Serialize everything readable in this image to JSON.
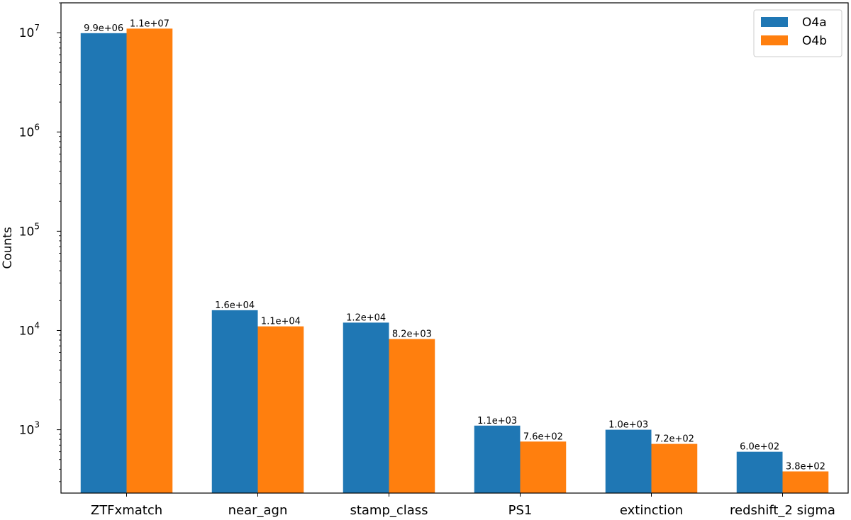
{
  "chart_data": {
    "type": "bar",
    "title": "",
    "xlabel": "",
    "ylabel": "Counts",
    "yscale": "log",
    "ylim": [
      230,
      20000000
    ],
    "yticks": [
      {
        "value": 1000,
        "base": "10",
        "exp": "3"
      },
      {
        "value": 10000,
        "base": "10",
        "exp": "4"
      },
      {
        "value": 100000,
        "base": "10",
        "exp": "5"
      },
      {
        "value": 1000000,
        "base": "10",
        "exp": "6"
      },
      {
        "value": 10000000,
        "base": "10",
        "exp": "7"
      }
    ],
    "categories": [
      "ZTFxmatch",
      "near_agn",
      "stamp_class",
      "PS1",
      "extinction",
      "redshift_2 sigma"
    ],
    "series": [
      {
        "name": "O4a",
        "color": "#1f77b4",
        "values": [
          9900000,
          16000,
          12000,
          1100,
          1000,
          600
        ],
        "labels": [
          "9.9e+06",
          "1.6e+04",
          "1.2e+04",
          "1.1e+03",
          "1.0e+03",
          "6.0e+02"
        ]
      },
      {
        "name": "O4b",
        "color": "#ff7f0e",
        "values": [
          11000000,
          11000,
          8200,
          760,
          720,
          380
        ],
        "labels": [
          "1.1e+07",
          "1.1e+04",
          "8.2e+03",
          "7.6e+02",
          "7.2e+02",
          "3.8e+02"
        ]
      }
    ],
    "grid": false,
    "legend": "top-right"
  }
}
